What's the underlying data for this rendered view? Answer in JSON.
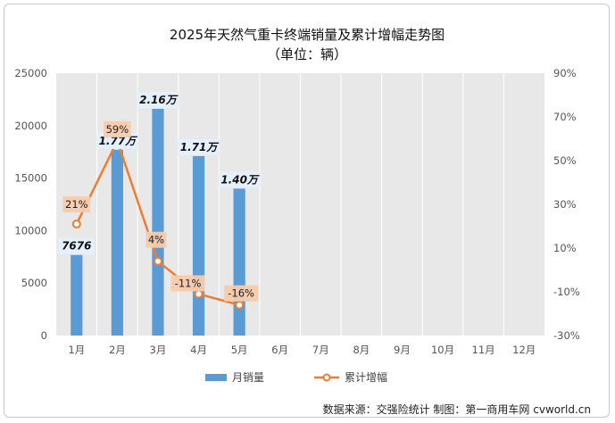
{
  "chart_data": {
    "type": "bar",
    "title": "2025年天然气重卡终端销量及累计增幅走势图",
    "subtitle": "（单位：辆）",
    "categories": [
      "1月",
      "2月",
      "3月",
      "4月",
      "5月",
      "6月",
      "7月",
      "8月",
      "9月",
      "10月",
      "11月",
      "12月"
    ],
    "series": [
      {
        "name": "月销量",
        "type": "bar",
        "axis": "left",
        "color": "#5b9bd5",
        "values": [
          7676,
          17700,
          21600,
          17100,
          14000,
          null,
          null,
          null,
          null,
          null,
          null,
          null
        ],
        "labels": [
          "7676",
          "1.77万",
          "2.16万",
          "1.71万",
          "1.40万",
          "",
          "",
          "",
          "",
          "",
          "",
          ""
        ]
      },
      {
        "name": "累计增幅",
        "type": "line",
        "axis": "right",
        "color": "#ed7d31",
        "values": [
          21,
          59,
          4,
          -11,
          -16,
          null,
          null,
          null,
          null,
          null,
          null,
          null
        ],
        "labels": [
          "21%",
          "59%",
          "4%",
          "-11%",
          "-16%",
          "",
          "",
          "",
          "",
          "",
          "",
          ""
        ]
      }
    ],
    "yleft": {
      "lim": [
        0,
        25000
      ],
      "ticks": [
        "0",
        "5000",
        "10000",
        "15000",
        "20000",
        "25000"
      ]
    },
    "yright": {
      "lim": [
        -30,
        90
      ],
      "ticks": [
        "-30%",
        "-10%",
        "10%",
        "30%",
        "50%",
        "70%",
        "90%"
      ]
    },
    "grid": true,
    "legend": "bottom",
    "source": "数据来源：交强险统计  制图：第一商用车网 cvworld.cn"
  }
}
